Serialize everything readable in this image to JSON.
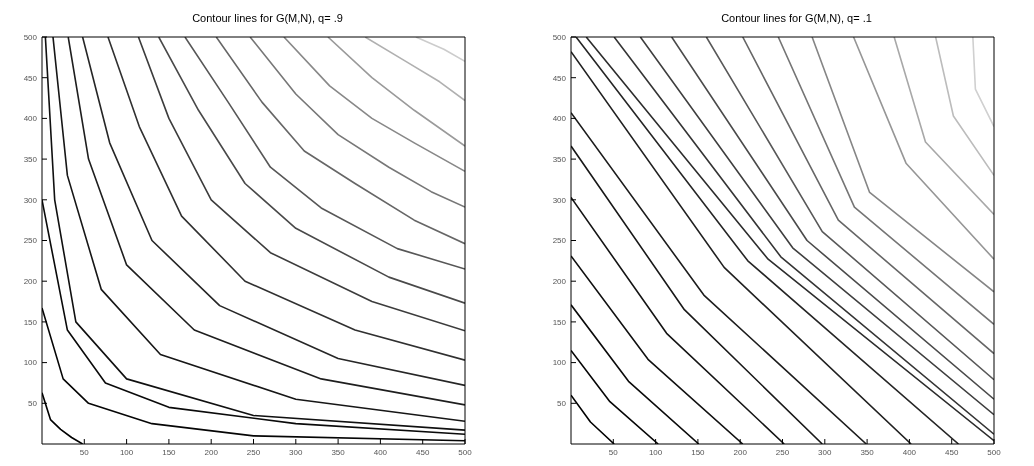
{
  "chart_data": [
    {
      "type": "line",
      "title": "Contour lines for G(M,N), q= .9",
      "xlim": [
        0,
        500
      ],
      "ylim": [
        0,
        500
      ],
      "xticks": [
        50,
        100,
        150,
        200,
        250,
        300,
        350,
        400,
        450,
        500
      ],
      "yticks": [
        50,
        100,
        150,
        200,
        250,
        300,
        350,
        400,
        450,
        500
      ],
      "series": [
        {
          "color": "#000000",
          "x": [
            0,
            10,
            22,
            35,
            48
          ],
          "values": [
            63,
            30,
            18,
            8,
            0
          ]
        },
        {
          "color": "#050505",
          "x": [
            0,
            25,
            55,
            130,
            250,
            500
          ],
          "values": [
            167,
            80,
            50,
            25,
            10,
            4
          ]
        },
        {
          "color": "#0a0a0a",
          "x": [
            0,
            30,
            75,
            150,
            300,
            500
          ],
          "values": [
            300,
            140,
            75,
            45,
            25,
            12
          ]
        },
        {
          "color": "#101010",
          "x": [
            4,
            15,
            40,
            100,
            250,
            500
          ],
          "values": [
            500,
            300,
            150,
            80,
            35,
            17
          ]
        },
        {
          "color": "#161616",
          "x": [
            13,
            30,
            70,
            140,
            300,
            500
          ],
          "values": [
            500,
            330,
            190,
            110,
            55,
            28
          ]
        },
        {
          "color": "#1e1e1e",
          "x": [
            31,
            55,
            100,
            180,
            330,
            500
          ],
          "values": [
            500,
            350,
            220,
            140,
            80,
            48
          ]
        },
        {
          "color": "#262626",
          "x": [
            48,
            80,
            130,
            210,
            350,
            500
          ],
          "values": [
            500,
            370,
            250,
            170,
            105,
            72
          ]
        },
        {
          "color": "#303030",
          "x": [
            78,
            115,
            165,
            240,
            370,
            500
          ],
          "values": [
            500,
            390,
            280,
            200,
            140,
            103
          ]
        },
        {
          "color": "#3c3c3c",
          "x": [
            114,
            150,
            200,
            270,
            390,
            500
          ],
          "values": [
            500,
            400,
            300,
            235,
            175,
            139
          ]
        },
        {
          "color": "#494949",
          "x": [
            138,
            185,
            240,
            300,
            410,
            500
          ],
          "values": [
            500,
            410,
            320,
            265,
            205,
            173
          ]
        },
        {
          "color": "#575757",
          "x": [
            169,
            220,
            270,
            330,
            420,
            500
          ],
          "values": [
            500,
            420,
            340,
            290,
            240,
            215
          ]
        },
        {
          "color": "#666666",
          "x": [
            206,
            260,
            310,
            370,
            440,
            500
          ],
          "values": [
            500,
            420,
            360,
            320,
            275,
            246
          ]
        },
        {
          "color": "#777777",
          "x": [
            246,
            300,
            350,
            410,
            460,
            500
          ],
          "values": [
            500,
            430,
            380,
            340,
            310,
            291
          ]
        },
        {
          "color": "#888888",
          "x": [
            286,
            340,
            390,
            440,
            500
          ],
          "values": [
            500,
            440,
            400,
            370,
            335
          ]
        },
        {
          "color": "#9a9a9a",
          "x": [
            338,
            390,
            440,
            500
          ],
          "values": [
            500,
            450,
            410,
            366
          ]
        },
        {
          "color": "#b0b0b0",
          "x": [
            382,
            430,
            470,
            500
          ],
          "values": [
            500,
            470,
            445,
            422
          ]
        },
        {
          "color": "#cccccc",
          "x": [
            442,
            475,
            500
          ],
          "values": [
            500,
            485,
            470
          ]
        }
      ]
    },
    {
      "type": "line",
      "title": "Contour lines for G(M,N), q= .1",
      "xlim": [
        0,
        500
      ],
      "ylim": [
        0,
        500
      ],
      "xticks": [
        50,
        100,
        150,
        200,
        250,
        300,
        350,
        400,
        450,
        500
      ],
      "yticks": [
        50,
        100,
        150,
        200,
        250,
        300,
        350,
        400,
        450,
        500
      ],
      "series": [
        {
          "color": "#000000",
          "x": [
            0,
            23,
            51
          ],
          "values": [
            60,
            27,
            0
          ]
        },
        {
          "color": "#050505",
          "x": [
            0,
            46,
            103
          ],
          "values": [
            115,
            52,
            0
          ]
        },
        {
          "color": "#0a0a0a",
          "x": [
            0,
            68,
            151
          ],
          "values": [
            171,
            77,
            0
          ]
        },
        {
          "color": "#101010",
          "x": [
            0,
            91,
            203
          ],
          "values": [
            231,
            104,
            0
          ]
        },
        {
          "color": "#141414",
          "x": [
            0,
            113,
            252
          ],
          "values": [
            303,
            136,
            0
          ]
        },
        {
          "color": "#181818",
          "x": [
            0,
            134,
            297
          ],
          "values": [
            366,
            165,
            0
          ]
        },
        {
          "color": "#1c1c1c",
          "x": [
            0,
            157,
            349
          ],
          "values": [
            407,
            183,
            0
          ]
        },
        {
          "color": "#202020",
          "x": [
            0,
            181,
            402
          ],
          "values": [
            482,
            217,
            0
          ]
        },
        {
          "color": "#252525",
          "x": [
            6,
            209,
            458
          ],
          "values": [
            500,
            225,
            0
          ]
        },
        {
          "color": "#2c2c2c",
          "x": [
            18,
            233,
            500
          ],
          "values": [
            500,
            227,
            4
          ]
        },
        {
          "color": "#343434",
          "x": [
            51,
            248,
            500
          ],
          "values": [
            500,
            230,
            12
          ]
        },
        {
          "color": "#3e3e3e",
          "x": [
            82,
            262,
            500
          ],
          "values": [
            500,
            241,
            36
          ]
        },
        {
          "color": "#4a4a4a",
          "x": [
            119,
            279,
            500
          ],
          "values": [
            500,
            250,
            55
          ]
        },
        {
          "color": "#585858",
          "x": [
            160,
            297,
            500
          ],
          "values": [
            500,
            261,
            79
          ]
        },
        {
          "color": "#666666",
          "x": [
            203,
            316,
            500
          ],
          "values": [
            500,
            275,
            111
          ]
        },
        {
          "color": "#757575",
          "x": [
            245,
            335,
            500
          ],
          "values": [
            500,
            291,
            147
          ]
        },
        {
          "color": "#858585",
          "x": [
            285,
            353,
            500
          ],
          "values": [
            500,
            309,
            187
          ]
        },
        {
          "color": "#969696",
          "x": [
            334,
            396,
            500
          ],
          "values": [
            500,
            345,
            227
          ]
        },
        {
          "color": "#a8a8a8",
          "x": [
            382,
            419,
            500
          ],
          "values": [
            500,
            371,
            282
          ]
        },
        {
          "color": "#bcbcbc",
          "x": [
            431,
            452,
            500
          ],
          "values": [
            500,
            403,
            330
          ]
        },
        {
          "color": "#d0d0d0",
          "x": [
            475,
            478,
            500
          ],
          "values": [
            500,
            436,
            390
          ]
        }
      ]
    }
  ]
}
